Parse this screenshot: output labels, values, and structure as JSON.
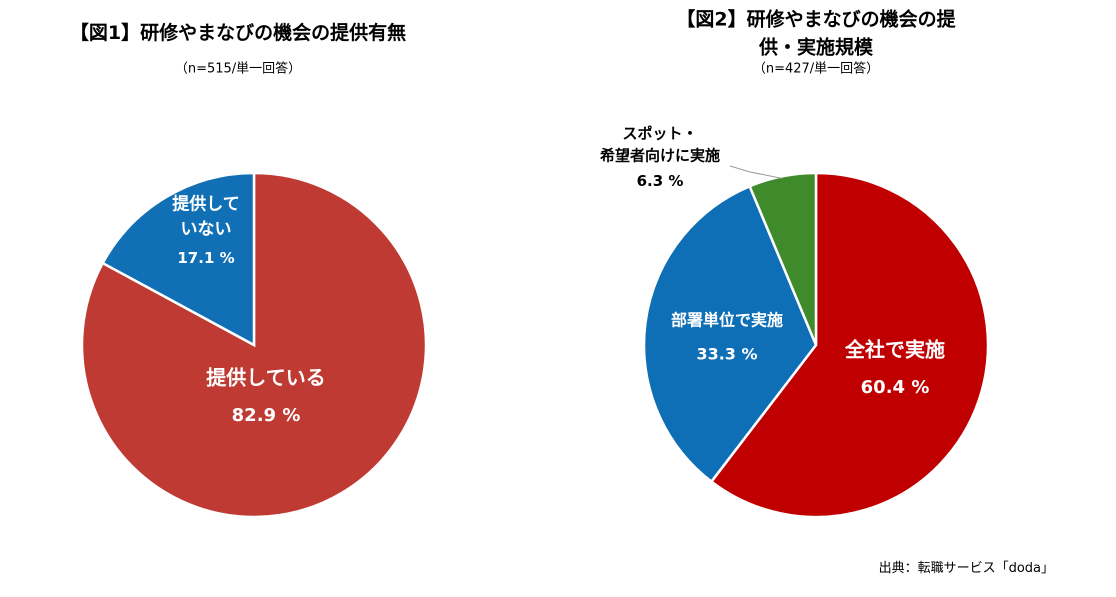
{
  "chart_data": [
    {
      "type": "pie",
      "title": "【図1】研修やまなびの機会の提供有無",
      "subtitle": "（n=515/単一回答）",
      "categories": [
        "提供している",
        "提供して\nいない"
      ],
      "values": [
        82.9,
        17.1
      ],
      "value_labels": [
        "82.9 %",
        "17.1 %"
      ],
      "colors": [
        "#bf3a33",
        "#1170b5"
      ]
    },
    {
      "type": "pie",
      "title": "【図2】研修やまなびの機会の提供・実施規模",
      "subtitle": "（n=427/単一回答）",
      "categories": [
        "全社で実施",
        "部署単位で実施",
        "スポット・\n希望者向けに実施"
      ],
      "values": [
        60.4,
        33.3,
        6.3
      ],
      "value_labels": [
        "60.4 %",
        "33.3 %",
        "6.3 %"
      ],
      "colors": [
        "#c00000",
        "#0f6fb6",
        "#3f8a2b"
      ]
    }
  ],
  "source": "出典：転職サービス「doda」"
}
